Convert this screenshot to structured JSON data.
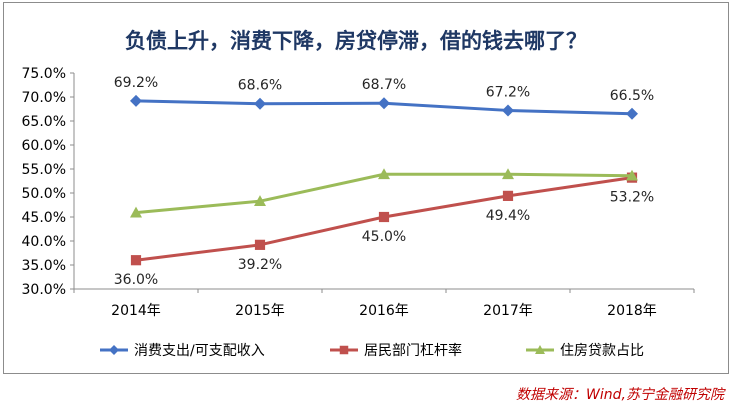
{
  "chart_data": {
    "type": "line",
    "title": "负债上升，消费下降，房贷停滞，借的钱去哪了？",
    "categories": [
      "2014年",
      "2015年",
      "2016年",
      "2017年",
      "2018年"
    ],
    "ylim": [
      30.0,
      75.0
    ],
    "y_ticks": [
      "30.0%",
      "35.0%",
      "40.0%",
      "45.0%",
      "50.0%",
      "55.0%",
      "60.0%",
      "65.0%",
      "70.0%",
      "75.0%"
    ],
    "grid": false,
    "legend_position": "bottom",
    "series": [
      {
        "name": "消费支出/可支配收入",
        "values": [
          69.2,
          68.6,
          68.7,
          67.2,
          66.5
        ],
        "labels": [
          "69.2%",
          "68.6%",
          "68.7%",
          "67.2%",
          "66.5%"
        ],
        "color": "#4472c4",
        "marker": "diamond"
      },
      {
        "name": "居民部门杠杆率",
        "values": [
          36.0,
          39.2,
          45.0,
          49.4,
          53.2
        ],
        "labels": [
          "36.0%",
          "39.2%",
          "45.0%",
          "49.4%",
          "53.2%"
        ],
        "color": "#c0504d",
        "marker": "square"
      },
      {
        "name": "住房贷款占比",
        "values": [
          45.9,
          48.3,
          53.9,
          53.9,
          53.6
        ],
        "labels": [],
        "color": "#9bbb59",
        "marker": "triangle"
      }
    ]
  },
  "source_note": "数据来源：Wind,苏宁金融研究院"
}
